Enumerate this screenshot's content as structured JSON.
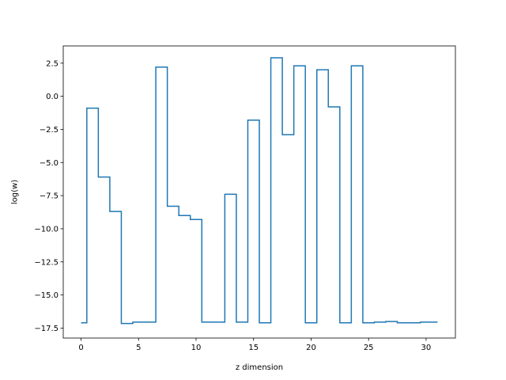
{
  "chart_data": {
    "type": "line",
    "drawstyle": "steps-mid",
    "title": "",
    "xlabel": "z dimension",
    "ylabel": "log(w)",
    "xlim": [
      -1.55,
      32.55
    ],
    "ylim": [
      -18.25,
      3.8
    ],
    "xticks": [
      0,
      5,
      10,
      15,
      20,
      25,
      30
    ],
    "yticks": [
      -17.5,
      -15.0,
      -12.5,
      -10.0,
      -7.5,
      -5.0,
      -2.5,
      0.0,
      2.5
    ],
    "xtick_labels": [
      "0",
      "5",
      "10",
      "15",
      "20",
      "25",
      "30"
    ],
    "ytick_labels": [
      "−17.5",
      "−15.0",
      "−12.5",
      "−10.0",
      "−7.5",
      "−5.0",
      "−2.5",
      "0.0",
      "2.5"
    ],
    "grid": false,
    "legend": "none",
    "series": [
      {
        "color": "#1f77b4",
        "x": [
          0,
          1,
          2,
          3,
          4,
          5,
          6,
          7,
          8,
          9,
          10,
          11,
          12,
          13,
          14,
          15,
          16,
          17,
          18,
          19,
          20,
          21,
          22,
          23,
          24,
          25,
          26,
          27,
          28,
          29,
          30,
          31
        ],
        "y": [
          -17.1,
          -0.9,
          -6.1,
          -8.7,
          -17.15,
          -17.05,
          -17.05,
          2.2,
          -8.3,
          -9.0,
          -9.3,
          -17.05,
          -17.05,
          -7.4,
          -17.05,
          -1.8,
          -17.1,
          2.9,
          -2.9,
          2.3,
          -17.1,
          2.0,
          -0.8,
          -17.1,
          2.3,
          -17.1,
          -17.05,
          -17.0,
          -17.1,
          -17.1,
          -17.05,
          -17.05
        ]
      }
    ]
  }
}
